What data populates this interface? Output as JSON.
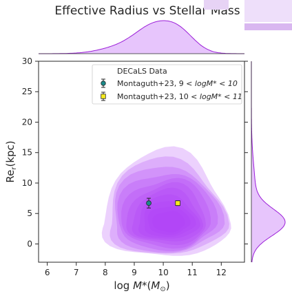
{
  "chart_data": {
    "type": "scatter",
    "title": "Effective Radius vs Stellar Mass",
    "xlabel": "log M*(M⊙)",
    "ylabel": "Re_r(kpc)",
    "xlim": [
      5.7,
      12.8
    ],
    "ylim": [
      -3,
      30
    ],
    "xticks": [
      6,
      7,
      8,
      9,
      10,
      11,
      12
    ],
    "yticks": [
      0,
      5,
      10,
      15,
      20,
      25,
      30
    ],
    "grid": false,
    "legend_position": "top-right",
    "legend_title": "DECaLS Data",
    "density": {
      "name": "DECaLS Data",
      "color": "#b13ff5",
      "peak": [
        10.2,
        3.3
      ],
      "marginal_x_peak": 10.0,
      "marginal_y_peak": 3.5
    },
    "series": [
      {
        "name": "Montaguth+23, 9 < logM* < 10",
        "legend_main": "Montaguth+23, 9 < ",
        "legend_math": "logM* < 10",
        "marker": "circle",
        "color": "#1a8a8a",
        "x": [
          9.5
        ],
        "y": [
          6.7
        ],
        "yerr": [
          0.8
        ]
      },
      {
        "name": "Montaguth+23, 10 < logM* < 11",
        "legend_main": "Montaguth+23, 10 < ",
        "legend_math": "logM* < 11",
        "marker": "square",
        "color": "#f5ea1e",
        "x": [
          10.5
        ],
        "y": [
          6.7
        ],
        "yerr": [
          0.4
        ]
      }
    ]
  }
}
